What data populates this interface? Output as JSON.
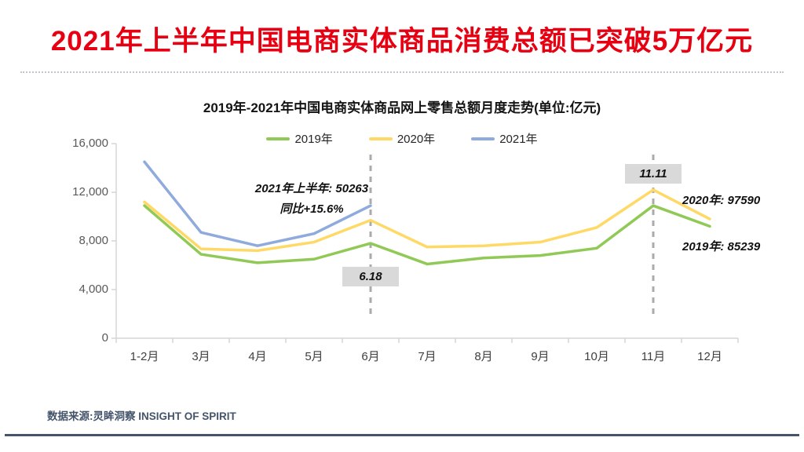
{
  "slide": {
    "main_title": "2021年上半年中国电商实体商品消费总额已突破5万亿元",
    "footer": "数据来源:灵眸洞察 INSIGHT OF SPIRIT",
    "title_color": "#e60012",
    "footer_color": "#44546a"
  },
  "chart_data": {
    "type": "line",
    "title": "2019年-2021年中国电商实体商品网上零售总额月度走势(单位:亿元)",
    "xlabel": "",
    "ylabel": "亿元",
    "categories": [
      "1-2月",
      "3月",
      "4月",
      "5月",
      "6月",
      "7月",
      "8月",
      "9月",
      "10月",
      "11月",
      "12月"
    ],
    "ylim": [
      0,
      16000
    ],
    "grid": false,
    "legend_position": "top",
    "y_ticks": {
      "values": [
        0,
        4000,
        8000,
        12000,
        16000
      ],
      "labels": [
        "0",
        "4,000",
        "8,000",
        "12,000",
        "16,000"
      ]
    },
    "series": [
      {
        "name": "2019年",
        "color": "#90c955",
        "values": [
          10900,
          6900,
          6200,
          6500,
          7800,
          6100,
          6600,
          6800,
          7400,
          10900,
          9200
        ]
      },
      {
        "name": "2020年",
        "color": "#ffd966",
        "values": [
          11200,
          7350,
          7200,
          7900,
          9700,
          7500,
          7600,
          7900,
          9100,
          12200,
          9800
        ]
      },
      {
        "name": "2021年",
        "color": "#8faadc",
        "values": [
          14500,
          8700,
          7600,
          8600,
          10900
        ]
      }
    ],
    "events": [
      {
        "label": "6.18",
        "category_index": 4,
        "placement": "below"
      },
      {
        "label": "11.11",
        "category_index": 9,
        "placement": "above"
      }
    ],
    "annotations": {
      "h1_line1": "2021年上半年: 50263",
      "h1_line2": "同比+15.6%",
      "right_2020": "2020年: 97590",
      "right_2019": "2019年: 85239"
    },
    "event_line_color": "#ababab",
    "axis_color": "#d6d6d6"
  }
}
